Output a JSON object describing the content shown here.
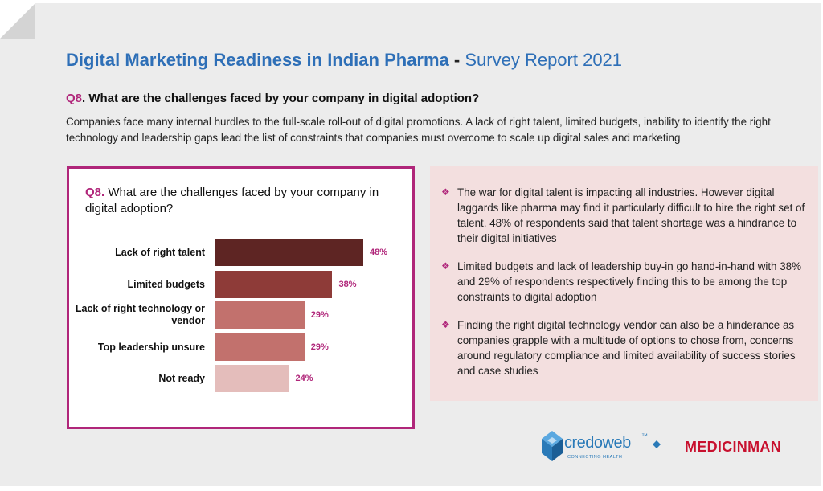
{
  "header": {
    "title_main": "Digital Marketing Readiness in Indian Pharma",
    "title_separator": "-",
    "title_sub": "Survey Report 2021"
  },
  "question": {
    "number": "Q8",
    "text": ". What are the challenges faced by your company in digital adoption?"
  },
  "description": "Companies face many internal hurdles to the full-scale roll-out of digital promotions. A lack of right talent, limited budgets, inability to identify the right technology and leadership gaps lead the list of constraints that companies must overcome to scale up digital sales and marketing",
  "chart_data": {
    "type": "bar",
    "orientation": "horizontal",
    "title_number": "Q8.",
    "title": "What are the challenges faced by your company in digital adoption?",
    "categories": [
      "Lack of right talent",
      "Limited budgets",
      "Lack of right technology or vendor",
      "Top leadership unsure",
      "Not ready"
    ],
    "values": [
      48,
      38,
      29,
      29,
      24
    ],
    "value_labels": [
      "48%",
      "38%",
      "29%",
      "29%",
      "24%"
    ],
    "colors": [
      "#5e2523",
      "#8e3b38",
      "#c2716d",
      "#c2716d",
      "#e4bdbb"
    ],
    "xlim": [
      0,
      60
    ],
    "grid": false,
    "legend": "none"
  },
  "notes": [
    "The war for digital talent is impacting all industries. However digital laggards like pharma may find it particularly difficult to hire the right set of talent. 48% of respondents said that talent shortage was a hindrance to their digital initiatives",
    "Limited budgets and lack of leadership buy-in go hand-in-hand with 38% and 29% of respondents respectively finding this to be among the top constraints to digital adoption",
    "Finding the right digital technology vendor can also be a hinderance as companies grapple with a multitude of options to chose from, concerns around regulatory compliance and limited availability of success stories and case studies"
  ],
  "note_bullet": "❖",
  "logos": {
    "credoweb": "credoweb",
    "credoweb_tm": "™",
    "credoweb_tagline": "CONNECTING HEALTH",
    "medicinman": "MEDICINMAN"
  },
  "colors": {
    "title_blue": "#2e6fb7",
    "accent_magenta": "#b0267a",
    "notes_bg": "#f3dfdf"
  }
}
